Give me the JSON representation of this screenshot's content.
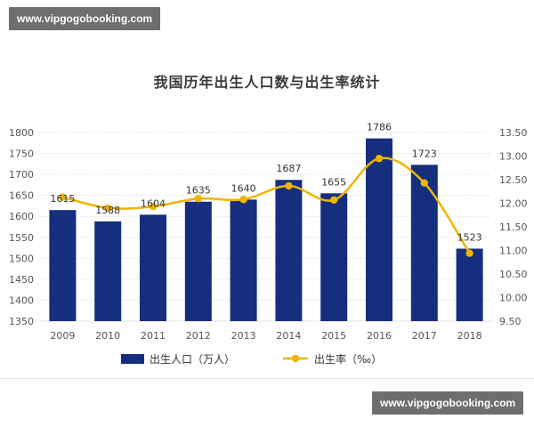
{
  "watermark_top": "www.vipgogobooking.com",
  "watermark_bottom": "www.vipgogobooking.com",
  "colors": {
    "bar": "#152f7e",
    "line": "#f0b400",
    "grid": "#e3e3e3",
    "text": "#555555"
  },
  "chart_data": {
    "type": "bar+line",
    "title": "我国历年出生人口数与出生率统计",
    "categories": [
      "2009",
      "2010",
      "2011",
      "2012",
      "2013",
      "2014",
      "2015",
      "2016",
      "2017",
      "2018"
    ],
    "series": [
      {
        "name": "出生人口（万人）",
        "type": "bar",
        "axis": "left",
        "values": [
          1615,
          1588,
          1604,
          1635,
          1640,
          1687,
          1655,
          1786,
          1723,
          1523
        ]
      },
      {
        "name": "出生率（‰）",
        "type": "line",
        "axis": "right",
        "values": [
          12.13,
          11.9,
          11.93,
          12.1,
          12.08,
          12.37,
          12.07,
          12.95,
          12.43,
          10.94
        ]
      }
    ],
    "y_left": {
      "min": 1350,
      "max": 1800,
      "ticks": [
        "1350",
        "1400",
        "1450",
        "1500",
        "1550",
        "1600",
        "1650",
        "1700",
        "1750",
        "1800"
      ]
    },
    "y_right": {
      "min": 9.5,
      "max": 13.5,
      "ticks": [
        "9.50",
        "10.00",
        "10.50",
        "11.00",
        "11.50",
        "12.00",
        "12.50",
        "13.00",
        "13.50"
      ]
    },
    "grid": true,
    "legend_position": "bottom"
  }
}
